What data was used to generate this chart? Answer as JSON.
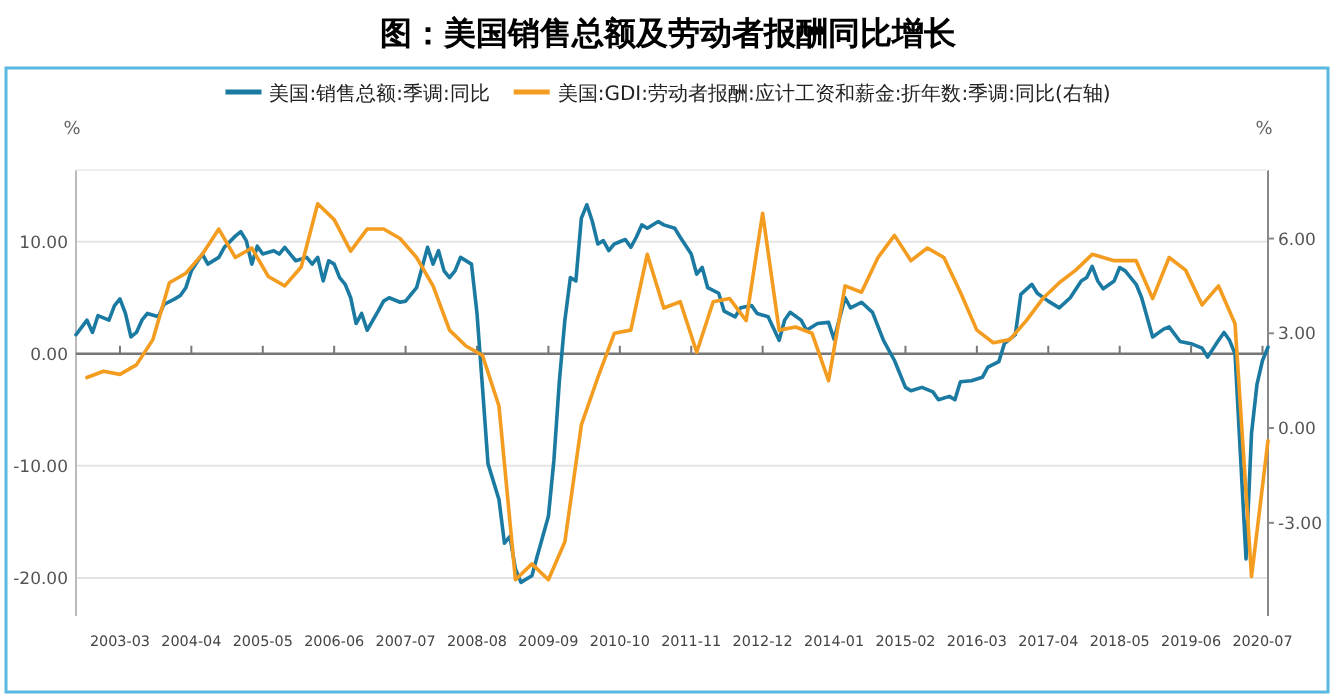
{
  "chart_data": {
    "type": "line",
    "title": "图：美国销售总额及劳动者报酬同比增长",
    "ylabel": "%",
    "y2label": "%",
    "xlim": [
      "2002-07",
      "2020-08"
    ],
    "xticks": [
      "2003-03",
      "2004-04",
      "2005-05",
      "2006-06",
      "2007-07",
      "2008-08",
      "2009-09",
      "2010-10",
      "2011-11",
      "2012-12",
      "2014-01",
      "2015-02",
      "2016-03",
      "2017-04",
      "2018-05",
      "2019-06",
      "2020-07"
    ],
    "ylim": [
      -23.4,
      16.4
    ],
    "yticks": [
      {
        "value": 10,
        "label": "10.00"
      },
      {
        "value": 0,
        "label": "0.00"
      },
      {
        "value": -10,
        "label": "-10.00"
      },
      {
        "value": -20,
        "label": "-20.00"
      }
    ],
    "y2lim": [
      -5.95,
      8.17
    ],
    "y2ticks": [
      {
        "value": 6,
        "label": "6.00"
      },
      {
        "value": 3,
        "label": "3.00"
      },
      {
        "value": 0,
        "label": "0.00"
      },
      {
        "value": -3,
        "label": "-3.00"
      }
    ],
    "grid": "y",
    "legend": "top",
    "marker": "none",
    "line_style": "solid",
    "series": [
      {
        "name": "美国:销售总额:季调:同比",
        "color": "#1b7aa1",
        "x": [
          "2002-07",
          "2002-09",
          "2002-10",
          "2002-11",
          "2003-01",
          "2003-02",
          "2003-03",
          "2003-04",
          "2003-05",
          "2003-06",
          "2003-07",
          "2003-08",
          "2003-10",
          "2003-11",
          "2004-01",
          "2004-02",
          "2004-03",
          "2004-04",
          "2004-06",
          "2004-07",
          "2004-09",
          "2004-10",
          "2004-12",
          "2005-01",
          "2005-02",
          "2005-03",
          "2005-04",
          "2005-05",
          "2005-07",
          "2005-08",
          "2005-09",
          "2005-11",
          "2006-01",
          "2006-02",
          "2006-03",
          "2006-04",
          "2006-05",
          "2006-06",
          "2006-07",
          "2006-08",
          "2006-09",
          "2006-10",
          "2006-11",
          "2006-12",
          "2007-02",
          "2007-03",
          "2007-04",
          "2007-06",
          "2007-07",
          "2007-09",
          "2007-11",
          "2007-12",
          "2008-01",
          "2008-02",
          "2008-03",
          "2008-04",
          "2008-05",
          "2008-07",
          "2008-08",
          "2008-09",
          "2008-10",
          "2008-12",
          "2009-01",
          "2009-02",
          "2009-03",
          "2009-04",
          "2009-05",
          "2009-06",
          "2009-07",
          "2009-09",
          "2009-10",
          "2009-11",
          "2009-12",
          "2010-01",
          "2010-02",
          "2010-03",
          "2010-04",
          "2010-05",
          "2010-06",
          "2010-07",
          "2010-08",
          "2010-09",
          "2010-11",
          "2010-12",
          "2011-01",
          "2011-02",
          "2011-03",
          "2011-05",
          "2011-06",
          "2011-08",
          "2011-09",
          "2011-11",
          "2011-12",
          "2012-01",
          "2012-02",
          "2012-04",
          "2012-05",
          "2012-07",
          "2012-08",
          "2012-10",
          "2012-11",
          "2013-01",
          "2013-03",
          "2013-04",
          "2013-05",
          "2013-07",
          "2013-08",
          "2013-10",
          "2013-12",
          "2014-01",
          "2014-03",
          "2014-04",
          "2014-06",
          "2014-08",
          "2014-10",
          "2014-12",
          "2015-02",
          "2015-03",
          "2015-05",
          "2015-07",
          "2015-08",
          "2015-10",
          "2015-11",
          "2015-12",
          "2016-02",
          "2016-04",
          "2016-05",
          "2016-07",
          "2016-08",
          "2016-10",
          "2016-11",
          "2017-01",
          "2017-02",
          "2017-04",
          "2017-06",
          "2017-08",
          "2017-10",
          "2017-11",
          "2017-12",
          "2018-01",
          "2018-02",
          "2018-04",
          "2018-05",
          "2018-06",
          "2018-08",
          "2018-09",
          "2018-11",
          "2019-01",
          "2019-02",
          "2019-04",
          "2019-06",
          "2019-08",
          "2019-09",
          "2019-11",
          "2019-12",
          "2020-01",
          "2020-02",
          "2020-04",
          "2020-05",
          "2020-06",
          "2020-07",
          "2020-08"
        ],
        "values": [
          1.7,
          3.0,
          1.9,
          3.4,
          3.0,
          4.3,
          4.9,
          3.6,
          1.5,
          1.9,
          3.0,
          3.6,
          3.3,
          4.4,
          4.9,
          5.2,
          5.9,
          7.4,
          8.9,
          8.0,
          8.6,
          9.5,
          10.5,
          10.9,
          10.1,
          8.0,
          9.6,
          8.9,
          9.2,
          8.9,
          9.5,
          8.3,
          8.6,
          8.0,
          8.6,
          6.5,
          8.3,
          8.0,
          6.8,
          6.2,
          5.0,
          2.7,
          3.6,
          2.1,
          3.8,
          4.7,
          5.0,
          4.6,
          4.7,
          5.9,
          9.5,
          8.0,
          9.2,
          7.4,
          6.8,
          7.4,
          8.6,
          8.0,
          3.6,
          -3.0,
          -9.8,
          -13.0,
          -16.9,
          -16.3,
          -19.2,
          -20.4,
          -20.1,
          -19.8,
          -18.0,
          -14.5,
          -9.5,
          -2.4,
          3.0,
          6.8,
          6.5,
          12.1,
          13.3,
          11.8,
          9.8,
          10.1,
          9.2,
          9.8,
          10.2,
          9.5,
          10.4,
          11.5,
          11.2,
          11.8,
          11.5,
          11.2,
          10.4,
          8.9,
          7.1,
          7.7,
          5.9,
          5.4,
          3.8,
          3.3,
          4.1,
          4.3,
          3.6,
          3.3,
          1.2,
          3.0,
          3.7,
          3.0,
          2.1,
          2.7,
          2.8,
          1.3,
          5.0,
          4.1,
          4.6,
          3.7,
          1.2,
          -0.6,
          -3.0,
          -3.3,
          -3.0,
          -3.4,
          -4.1,
          -3.8,
          -4.1,
          -2.5,
          -2.4,
          -2.1,
          -1.2,
          -0.7,
          0.9,
          1.7,
          5.3,
          6.2,
          5.4,
          4.7,
          4.1,
          5.0,
          6.5,
          6.8,
          7.8,
          6.5,
          5.8,
          6.5,
          7.7,
          7.4,
          6.2,
          5.0,
          1.5,
          2.2,
          2.4,
          1.1,
          0.9,
          0.5,
          -0.3,
          1.2,
          1.9,
          1.2,
          0.0,
          -18.3,
          -7.1,
          -2.7,
          -0.6,
          0.6
        ]
      },
      {
        "name": "美国:GDI:劳动者报酬:应计工资和薪金:折年数:季调:同比(右轴)",
        "color": "#f39c1f",
        "axis": "y2",
        "x": [
          "2002-09",
          "2002-12",
          "2003-03",
          "2003-06",
          "2003-09",
          "2003-12",
          "2004-03",
          "2004-06",
          "2004-09",
          "2004-12",
          "2005-03",
          "2005-06",
          "2005-09",
          "2005-12",
          "2006-03",
          "2006-06",
          "2006-09",
          "2006-12",
          "2007-03",
          "2007-06",
          "2007-09",
          "2007-12",
          "2008-03",
          "2008-06",
          "2008-09",
          "2008-12",
          "2009-03",
          "2009-06",
          "2009-09",
          "2009-12",
          "2010-03",
          "2010-06",
          "2010-09",
          "2010-12",
          "2011-03",
          "2011-06",
          "2011-09",
          "2011-12",
          "2012-03",
          "2012-06",
          "2012-09",
          "2012-12",
          "2013-03",
          "2013-06",
          "2013-09",
          "2013-12",
          "2014-03",
          "2014-06",
          "2014-09",
          "2014-12",
          "2015-03",
          "2015-06",
          "2015-09",
          "2015-12",
          "2016-03",
          "2016-06",
          "2016-09",
          "2016-12",
          "2017-03",
          "2017-06",
          "2017-09",
          "2017-12",
          "2018-04",
          "2018-08",
          "2018-11",
          "2019-02",
          "2019-05",
          "2019-08",
          "2019-11",
          "2020-02",
          "2020-05",
          "2020-08"
        ],
        "values": [
          1.6,
          1.8,
          1.7,
          2.0,
          2.8,
          4.6,
          4.9,
          5.5,
          6.3,
          5.4,
          5.7,
          4.8,
          4.5,
          5.1,
          7.1,
          6.6,
          5.6,
          6.3,
          6.3,
          6.0,
          5.4,
          4.5,
          3.1,
          2.6,
          2.3,
          0.7,
          -4.8,
          -4.3,
          -4.8,
          -3.6,
          0.1,
          1.6,
          3.0,
          3.1,
          5.5,
          3.8,
          4.0,
          2.4,
          4.0,
          4.1,
          3.4,
          6.8,
          3.1,
          3.2,
          3.0,
          1.5,
          4.5,
          4.3,
          5.4,
          6.1,
          5.3,
          5.7,
          5.4,
          4.3,
          3.1,
          2.7,
          2.8,
          3.4,
          4.1,
          4.6,
          5.0,
          5.5,
          5.3,
          5.3,
          4.1,
          5.4,
          5.0,
          3.9,
          4.5,
          3.3,
          -4.7,
          -0.4
        ]
      }
    ]
  }
}
